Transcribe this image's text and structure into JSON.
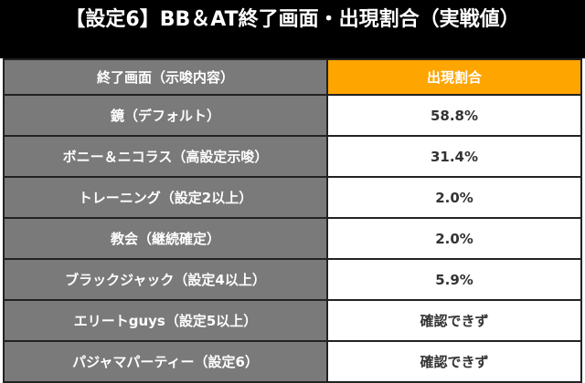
{
  "title": "【設定6】BB＆AT終了画面・出現割合（実戦値）",
  "table": {
    "headers": [
      "終了画面（示唆内容）",
      "出現割合"
    ],
    "rows": [
      {
        "screen": "鏡（デフォルト）",
        "rate": "58.8%"
      },
      {
        "screen": "ボニー＆ニコラス（高設定示唆）",
        "rate": "31.4%"
      },
      {
        "screen": "トレーニング（設定2以上）",
        "rate": "2.0%"
      },
      {
        "screen": "教会（継続確定）",
        "rate": "2.0%"
      },
      {
        "screen": "ブラックジャック（設定4以上）",
        "rate": "5.9%"
      },
      {
        "screen": "エリートguys（設定5以上）",
        "rate": "確認できず"
      },
      {
        "screen": "パジャマパーティー（設定6）",
        "rate": "確認できず"
      }
    ]
  }
}
